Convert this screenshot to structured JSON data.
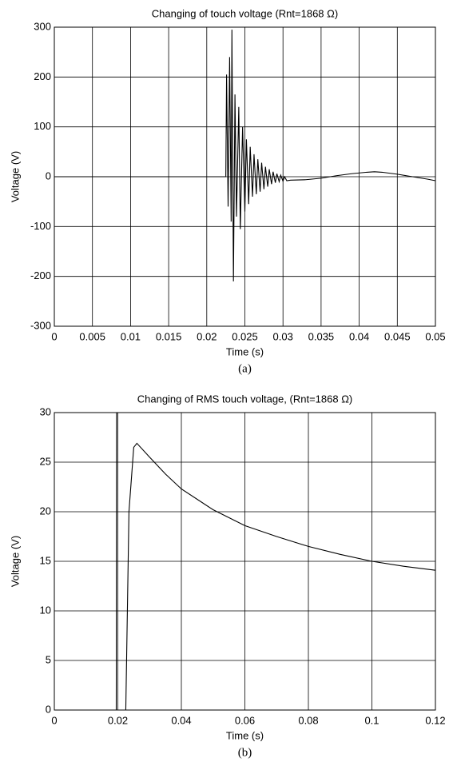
{
  "chart_data": [
    {
      "type": "line",
      "title": "Changing of touch voltage (Rnt=1868 Ω)",
      "xlabel": "Time (s)",
      "ylabel": "Voltage (V)",
      "caption": "(a)",
      "xlim": [
        0,
        0.05
      ],
      "xticks": [
        0,
        0.005,
        0.01,
        0.015,
        0.02,
        0.025,
        0.03,
        0.035,
        0.04,
        0.045,
        0.05
      ],
      "ylim": [
        -300,
        300
      ],
      "yticks": [
        -300,
        -200,
        -100,
        0,
        100,
        200,
        300
      ],
      "grid": true,
      "color": "#000000",
      "x": [
        0,
        0.005,
        0.01,
        0.015,
        0.0225,
        0.0226,
        0.0228,
        0.023,
        0.0232,
        0.0233,
        0.0235,
        0.0237,
        0.0239,
        0.0242,
        0.0244,
        0.0247,
        0.025,
        0.0252,
        0.0255,
        0.0257,
        0.026,
        0.0262,
        0.0265,
        0.0267,
        0.027,
        0.0272,
        0.0275,
        0.0277,
        0.028,
        0.0282,
        0.0285,
        0.0287,
        0.029,
        0.0292,
        0.0295,
        0.0297,
        0.03,
        0.0302,
        0.0305,
        0.031,
        0.033,
        0.035,
        0.037,
        0.039,
        0.041,
        0.042,
        0.043,
        0.045,
        0.047,
        0.049,
        0.05
      ],
      "values": [
        0,
        0,
        0,
        0,
        0,
        205,
        -60,
        240,
        -90,
        295,
        -210,
        165,
        -80,
        140,
        -105,
        100,
        -70,
        75,
        -55,
        60,
        -40,
        45,
        -35,
        35,
        -30,
        28,
        -25,
        20,
        -20,
        15,
        -15,
        10,
        -12,
        6,
        -10,
        3,
        -9,
        0,
        -8,
        -7,
        -6,
        -3,
        2,
        6,
        9,
        10,
        9,
        5,
        0,
        -5,
        -8
      ]
    },
    {
      "type": "line",
      "title": "Changing of RMS touch voltage, (Rnt=1868 Ω)",
      "xlabel": "Time (s)",
      "ylabel": "Voltage (V)",
      "caption": "(b)",
      "xlim": [
        0,
        0.12
      ],
      "xticks": [
        0,
        0.02,
        0.04,
        0.06,
        0.08,
        0.1,
        0.12
      ],
      "ylim": [
        0,
        30
      ],
      "yticks": [
        0,
        5,
        10,
        15,
        20,
        25,
        30
      ],
      "grid": true,
      "color": "#000000",
      "x": [
        0.0195,
        0.0196,
        0.021,
        0.0225,
        0.0235,
        0.025,
        0.026,
        0.03,
        0.035,
        0.04,
        0.05,
        0.06,
        0.07,
        0.08,
        0.09,
        0.1,
        0.11,
        0.12
      ],
      "values": [
        0,
        30,
        null,
        0,
        20,
        26.5,
        26.9,
        25.5,
        23.8,
        22.3,
        20.2,
        18.6,
        17.5,
        16.5,
        15.7,
        15,
        14.5,
        14.1
      ]
    }
  ]
}
